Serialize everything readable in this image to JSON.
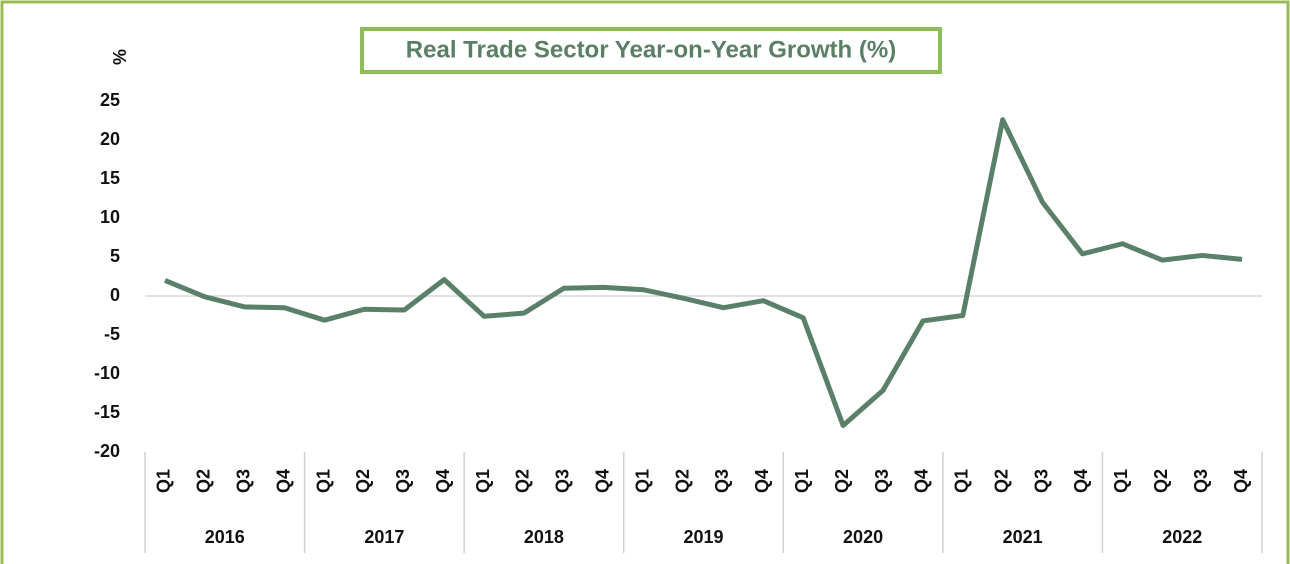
{
  "chart_data": {
    "type": "line",
    "title": "Real Trade Sector Year-on-Year Growth (%)",
    "y_label": "%",
    "categories": [
      "Q1",
      "Q2",
      "Q3",
      "Q4",
      "Q1",
      "Q2",
      "Q3",
      "Q4",
      "Q1",
      "Q2",
      "Q3",
      "Q4",
      "Q1",
      "Q2",
      "Q3",
      "Q4",
      "Q1",
      "Q2",
      "Q3",
      "Q4",
      "Q1",
      "Q2",
      "Q3",
      "Q4",
      "Q1",
      "Q2",
      "Q3",
      "Q4"
    ],
    "groups": [
      "2016",
      "2017",
      "2018",
      "2019",
      "2020",
      "2021",
      "2022"
    ],
    "series": [
      {
        "name": "Real Trade Sector Year-on-Year Growth",
        "color": "#5b806a",
        "values": [
          2.0,
          -0.1,
          -1.4,
          -1.5,
          -3.1,
          -1.7,
          -1.8,
          2.1,
          -2.6,
          -2.2,
          1.0,
          1.1,
          0.8,
          -0.3,
          -1.5,
          -0.6,
          -2.8,
          -16.6,
          -12.1,
          -3.2,
          -2.5,
          22.6,
          12.0,
          5.4,
          6.7,
          4.6,
          5.2,
          4.7
        ]
      }
    ],
    "ylim": [
      -20,
      25
    ],
    "yticks": [
      -20,
      -15,
      -10,
      -5,
      0,
      5,
      10,
      15,
      20,
      25
    ],
    "grid": false
  }
}
